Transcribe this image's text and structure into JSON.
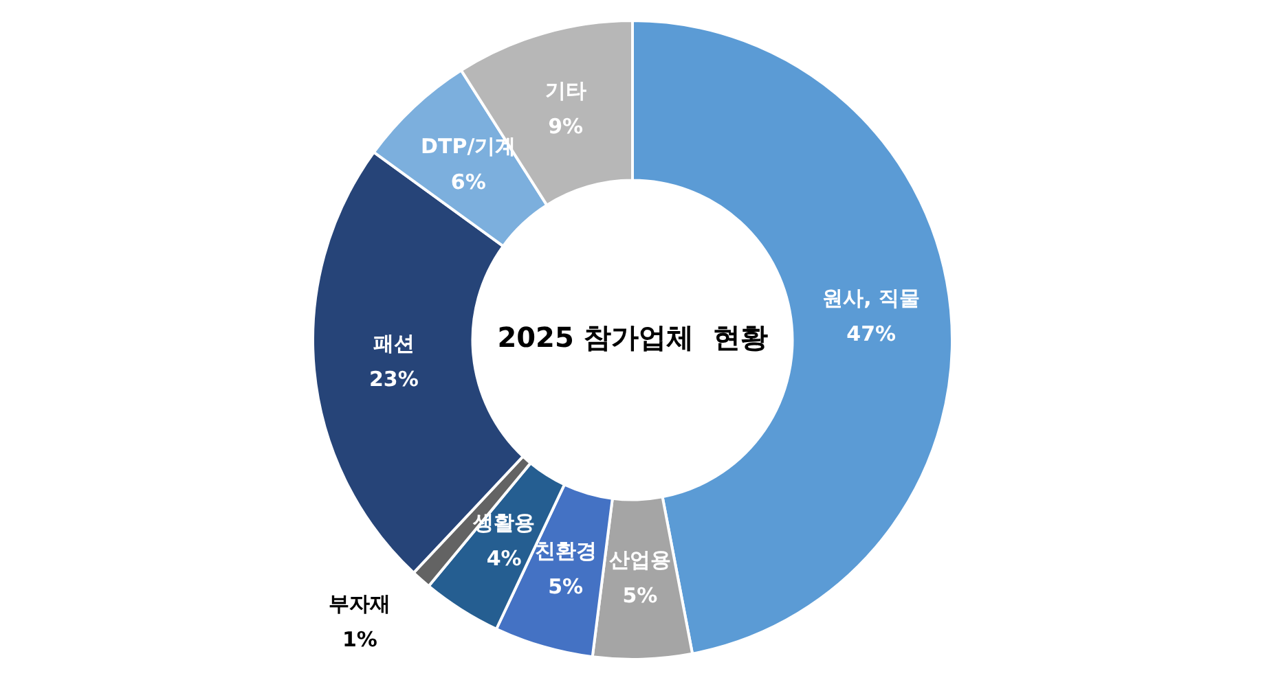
{
  "chart_data": {
    "type": "donut",
    "title": "2025 참가업체  현황",
    "categories": [
      "원사, 직물",
      "산업용",
      "친환경",
      "생활용",
      "부자재",
      "패션",
      "DTP/기계",
      "기타"
    ],
    "values": [
      47,
      5,
      5,
      4,
      1,
      23,
      6,
      9
    ],
    "value_labels": [
      "47%",
      "5%",
      "5%",
      "4%",
      "1%",
      "23%",
      "6%",
      "9%"
    ],
    "colors": [
      "#5b9bd5",
      "#a5a5a5",
      "#4472c4",
      "#255e91",
      "#636363",
      "#264478",
      "#7cafdd",
      "#b7b7b7"
    ],
    "legend": false
  }
}
